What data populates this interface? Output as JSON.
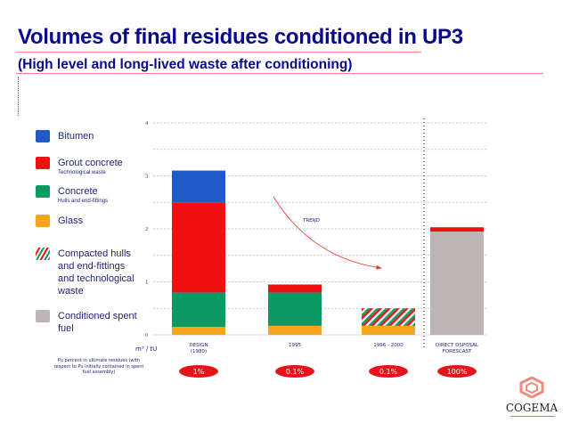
{
  "header": {
    "title": "Volumes of final residues conditioned in UP3",
    "subtitle": "(High level and long-lived waste after conditioning)"
  },
  "legend": [
    {
      "label": "Bitumen",
      "sub": "",
      "color": "#1e5bc8"
    },
    {
      "label": "Grout concrete",
      "sub": "Technological waste",
      "color": "#f01010"
    },
    {
      "label": "Concrete",
      "sub": "Hulls and end-fittings",
      "color": "#0d9a62"
    },
    {
      "label": "Glass",
      "sub": "",
      "color": "#f7a51c"
    },
    {
      "label": "Compacted hulls and end-fittings and technological waste",
      "sub": "",
      "color": "hatch"
    },
    {
      "label": "Conditioned spent fuel",
      "sub": "",
      "color": "#bdb5b5"
    }
  ],
  "pu_note": "Pu percent in ultimate residues (with respect to Pu initially contained in spent fuel assembly)",
  "logo": "COGEMA",
  "chart_data": {
    "type": "bar",
    "stacked": true,
    "ylabel": "m³ / tU",
    "ylim": [
      0,
      4
    ],
    "yticks": [
      0,
      1,
      2,
      3,
      4
    ],
    "grid": true,
    "annotation": "TREND",
    "categories": [
      "DESIGN (1980)",
      "1995",
      "1996 - 2000",
      "DIRECT DSPOSAL FORESCAST"
    ],
    "pu_percent": [
      "1%",
      "0.1%",
      "0.1%",
      "100%"
    ],
    "series": [
      {
        "name": "Glass",
        "color": "#f7a51c",
        "values": [
          0.15,
          0.17,
          0.17,
          0
        ]
      },
      {
        "name": "Concrete",
        "color": "#0d9a62",
        "values": [
          0.65,
          0.63,
          0,
          0
        ]
      },
      {
        "name": "Compacted hulls and end-fittings and technological waste",
        "color": "hatch",
        "values": [
          0,
          0,
          0.33,
          0
        ]
      },
      {
        "name": "Conditioned spent fuel",
        "color": "#bdb5b5",
        "values": [
          0,
          0,
          0,
          1.95
        ]
      },
      {
        "name": "Grout concrete",
        "color": "#f01010",
        "values": [
          1.7,
          0.15,
          0,
          0.08
        ]
      },
      {
        "name": "Bitumen",
        "color": "#1e5bc8",
        "values": [
          0.6,
          0,
          0,
          0
        ]
      }
    ]
  }
}
